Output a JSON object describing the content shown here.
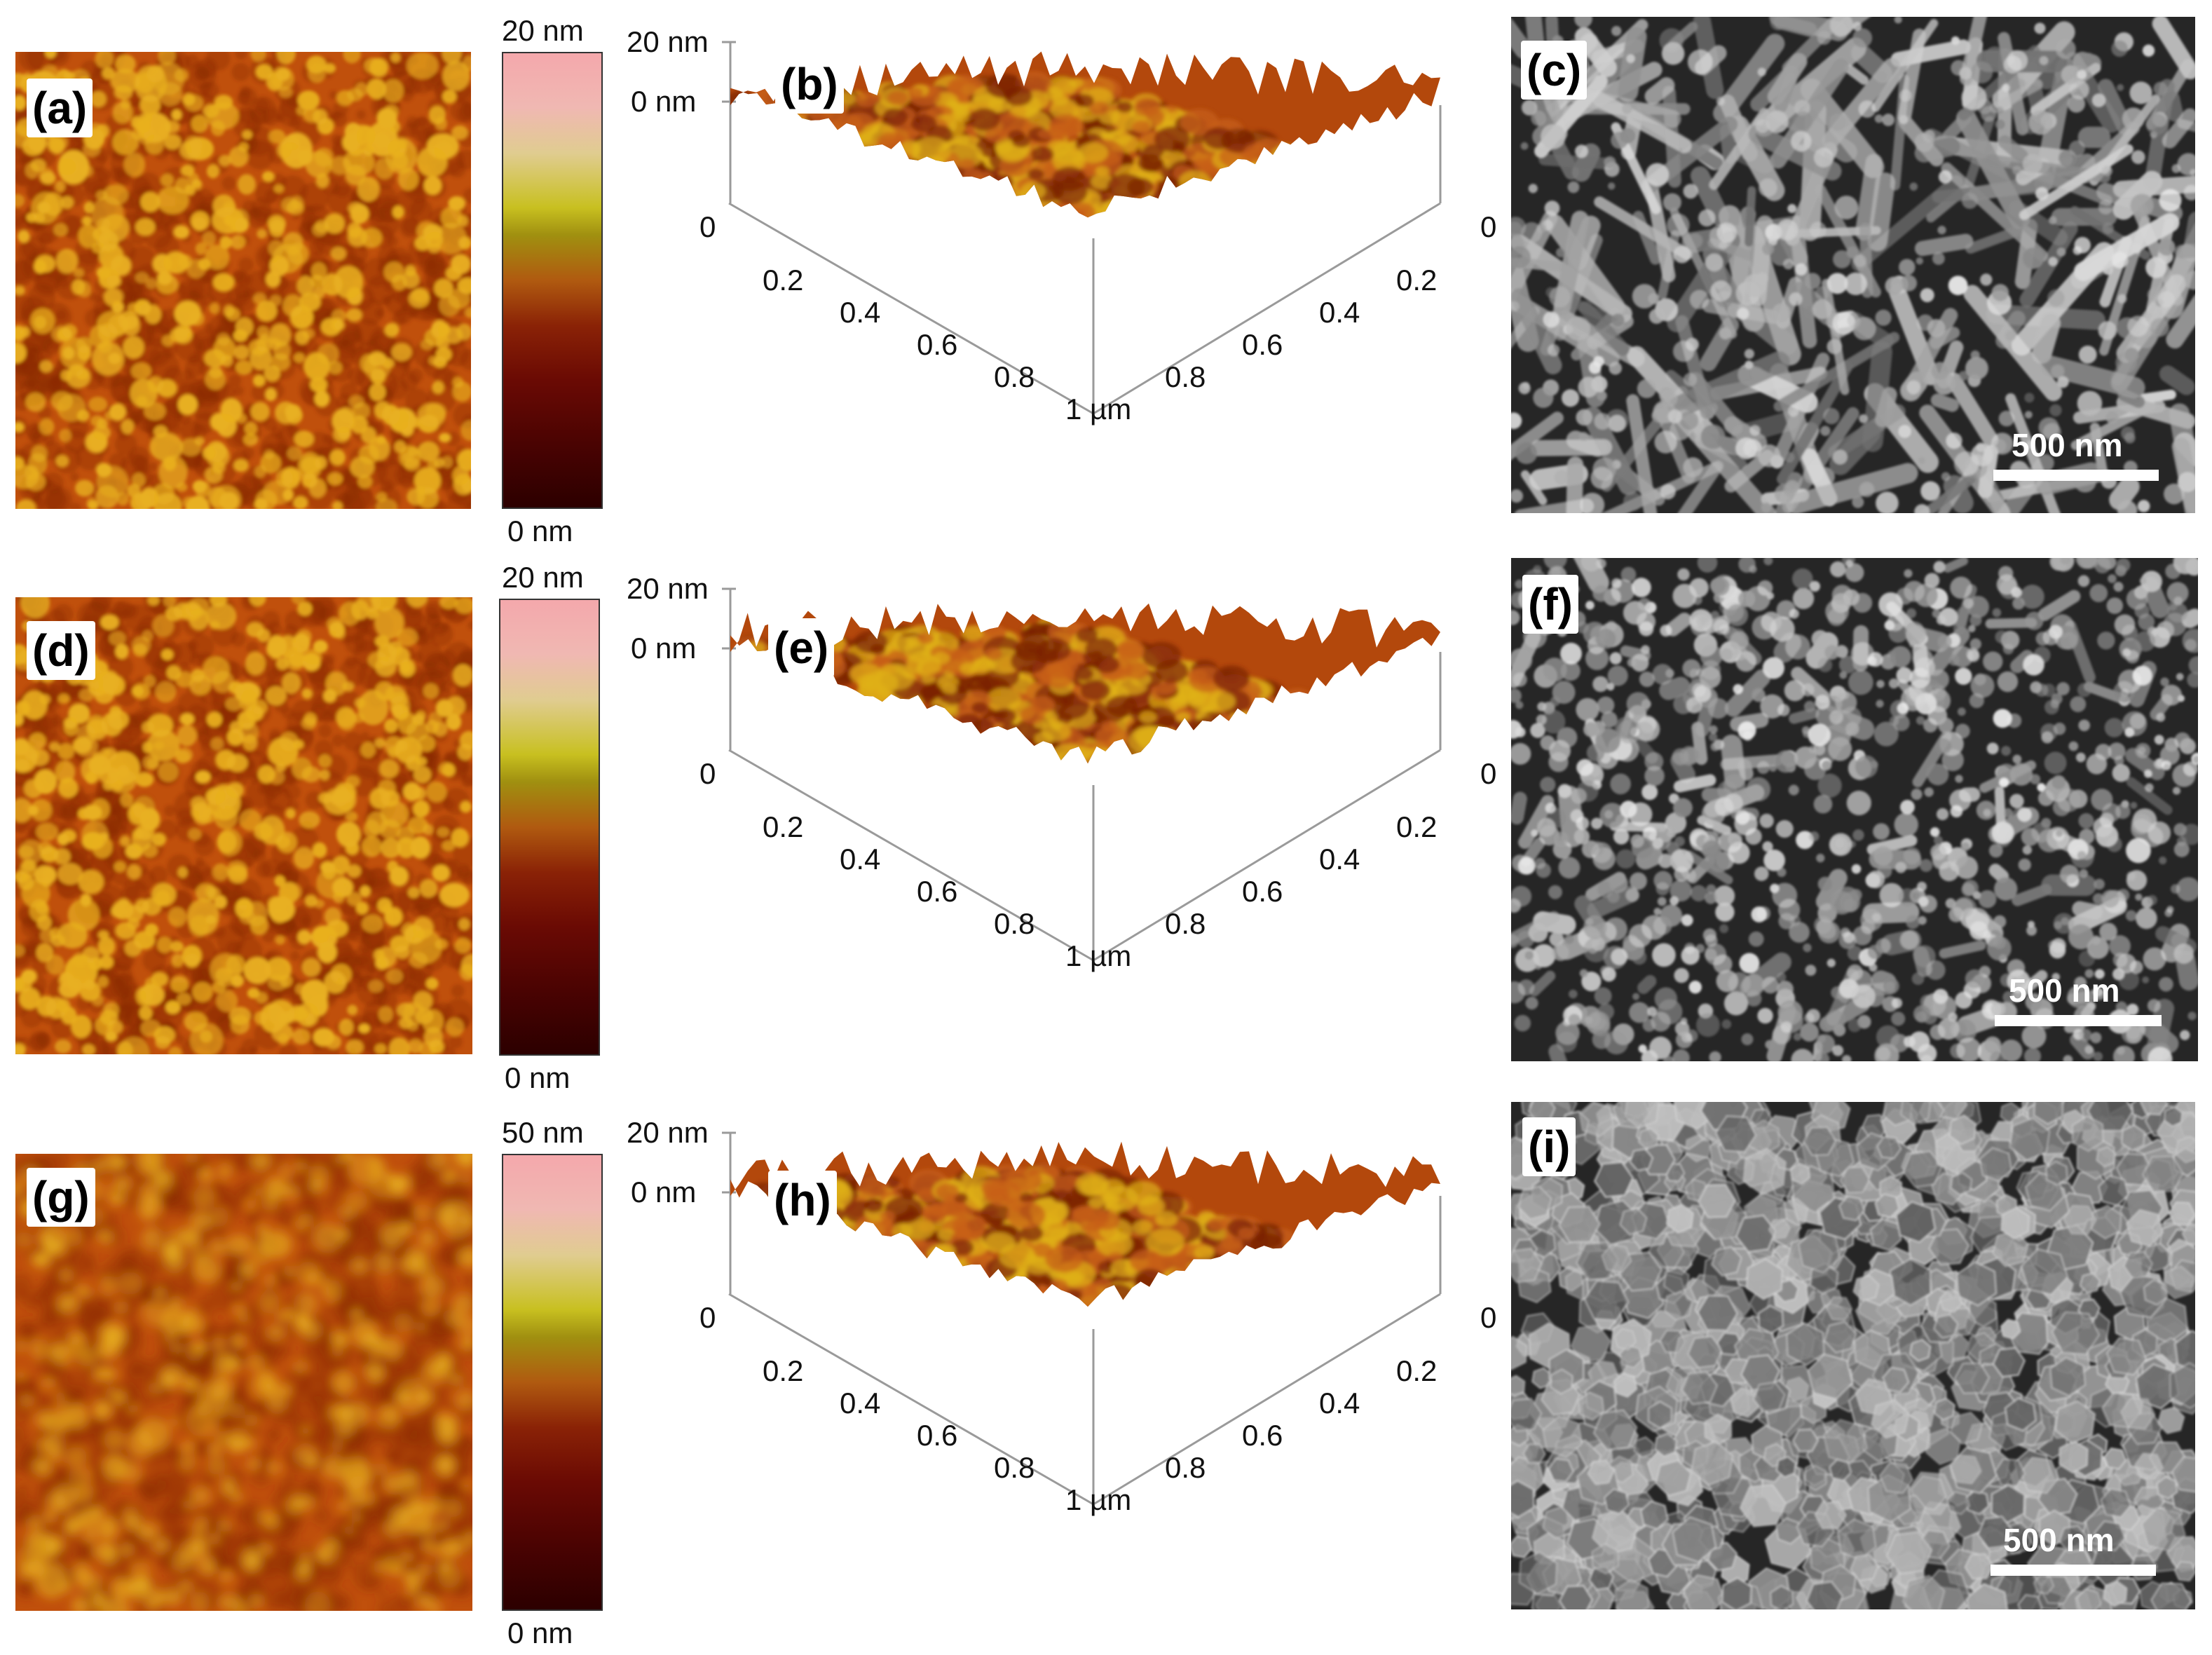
{
  "figure": {
    "rows": [
      {
        "afm2d": {
          "label": "(a)",
          "top_label": "20 nm",
          "bottom_label": "0 nm"
        },
        "afm3d": {
          "label": "(b)",
          "z_top": "20 nm",
          "z_zero": "0 nm",
          "left_ticks": [
            "0",
            "0.2",
            "0.4",
            "0.6",
            "0.8",
            "1 µm"
          ],
          "right_ticks": [
            "0",
            "0.2",
            "0.4",
            "0.6",
            "0.8"
          ]
        },
        "sem": {
          "label": "(c)",
          "scale_bar": "500 nm"
        }
      },
      {
        "afm2d": {
          "label": "(d)",
          "top_label": "20 nm",
          "bottom_label": "0 nm"
        },
        "afm3d": {
          "label": "(e)",
          "z_top": "20 nm",
          "z_zero": "0 nm",
          "left_ticks": [
            "0",
            "0.2",
            "0.4",
            "0.6",
            "0.8",
            "1 µm"
          ],
          "right_ticks": [
            "0",
            "0.2",
            "0.4",
            "0.6",
            "0.8"
          ]
        },
        "sem": {
          "label": "(f)",
          "scale_bar": "500 nm"
        }
      },
      {
        "afm2d": {
          "label": "(g)",
          "top_label": "50 nm",
          "bottom_label": "0 nm"
        },
        "afm3d": {
          "label": "(h)",
          "z_top": "20 nm",
          "z_zero": "0 nm",
          "left_ticks": [
            "0",
            "0.2",
            "0.4",
            "0.6",
            "0.8",
            "1 µm"
          ],
          "right_ticks": [
            "0",
            "0.2",
            "0.4",
            "0.6",
            "0.8"
          ]
        },
        "sem": {
          "label": "(i)",
          "scale_bar": "500 nm"
        }
      }
    ],
    "colors": {
      "afm_base": "#c0500c",
      "afm_grain": "#e8b020",
      "afm_dark": "#8a2a06",
      "sem_base": "#262626",
      "sem_particle": "#a6a6a6"
    }
  }
}
